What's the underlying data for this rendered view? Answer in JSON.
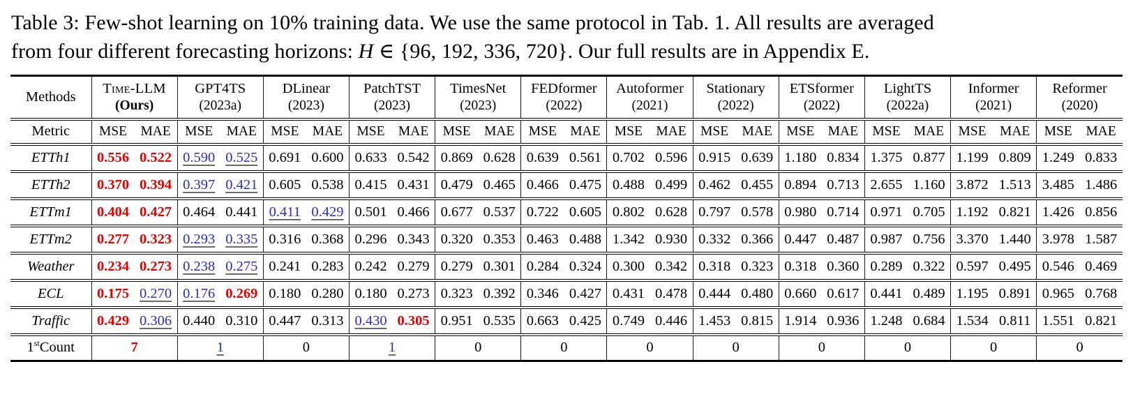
{
  "caption": {
    "line1": "Table 3: Few-shot learning on 10% training data. We use the same protocol in Tab. 1. All results are averaged",
    "line2_pre": "from four different forecasting horizons: ",
    "line2_var": "H",
    "line2_math": " ∈ {96, 192, 336, 720}",
    "line2_post": ". Our full results are in Appendix E."
  },
  "table": {
    "corner_label": "Methods",
    "metric_label": "Metric",
    "metrics": [
      "MSE",
      "MAE"
    ],
    "colors": {
      "best": "#e60000",
      "second": "#2b2bd0",
      "underline": "#6b6b6b"
    },
    "methods": [
      {
        "name": "Time-LLM",
        "year": "(Ours)",
        "smallcaps": true,
        "bold_year": true
      },
      {
        "name": "GPT4TS",
        "year": "(2023a)"
      },
      {
        "name": "DLinear",
        "year": "(2023)"
      },
      {
        "name": "PatchTST",
        "year": "(2023)"
      },
      {
        "name": "TimesNet",
        "year": "(2023)"
      },
      {
        "name": "FEDformer",
        "year": "(2022)"
      },
      {
        "name": "Autoformer",
        "year": "(2021)"
      },
      {
        "name": "Stationary",
        "year": "(2022)"
      },
      {
        "name": "ETSformer",
        "year": "(2022)"
      },
      {
        "name": "LightTS",
        "year": "(2022a)"
      },
      {
        "name": "Informer",
        "year": "(2021)"
      },
      {
        "name": "Reformer",
        "year": "(2020)"
      }
    ],
    "rows": [
      {
        "label": "ETTh1",
        "cells": [
          [
            "0.556",
            "b"
          ],
          [
            "0.522",
            "b"
          ],
          [
            "0.590",
            "s"
          ],
          [
            "0.525",
            "s"
          ],
          "0.691",
          "0.600",
          "0.633",
          "0.542",
          "0.869",
          "0.628",
          "0.639",
          "0.561",
          "0.702",
          "0.596",
          "0.915",
          "0.639",
          "1.180",
          "0.834",
          "1.375",
          "0.877",
          "1.199",
          "0.809",
          "1.249",
          "0.833"
        ]
      },
      {
        "label": "ETTh2",
        "cells": [
          [
            "0.370",
            "b"
          ],
          [
            "0.394",
            "b"
          ],
          [
            "0.397",
            "s"
          ],
          [
            "0.421",
            "s"
          ],
          "0.605",
          "0.538",
          "0.415",
          "0.431",
          "0.479",
          "0.465",
          "0.466",
          "0.475",
          "0.488",
          "0.499",
          "0.462",
          "0.455",
          "0.894",
          "0.713",
          "2.655",
          "1.160",
          "3.872",
          "1.513",
          "3.485",
          "1.486"
        ]
      },
      {
        "label": "ETTm1",
        "cells": [
          [
            "0.404",
            "b"
          ],
          [
            "0.427",
            "b"
          ],
          "0.464",
          "0.441",
          [
            "0.411",
            "s"
          ],
          [
            "0.429",
            "s"
          ],
          "0.501",
          "0.466",
          "0.677",
          "0.537",
          "0.722",
          "0.605",
          "0.802",
          "0.628",
          "0.797",
          "0.578",
          "0.980",
          "0.714",
          "0.971",
          "0.705",
          "1.192",
          "0.821",
          "1.426",
          "0.856"
        ]
      },
      {
        "label": "ETTm2",
        "cells": [
          [
            "0.277",
            "b"
          ],
          [
            "0.323",
            "b"
          ],
          [
            "0.293",
            "s"
          ],
          [
            "0.335",
            "s"
          ],
          "0.316",
          "0.368",
          "0.296",
          "0.343",
          "0.320",
          "0.353",
          "0.463",
          "0.488",
          "1.342",
          "0.930",
          "0.332",
          "0.366",
          "0.447",
          "0.487",
          "0.987",
          "0.756",
          "3.370",
          "1.440",
          "3.978",
          "1.587"
        ]
      },
      {
        "label": "Weather",
        "cells": [
          [
            "0.234",
            "b"
          ],
          [
            "0.273",
            "b"
          ],
          [
            "0.238",
            "s"
          ],
          [
            "0.275",
            "s"
          ],
          "0.241",
          "0.283",
          "0.242",
          "0.279",
          "0.279",
          "0.301",
          "0.284",
          "0.324",
          "0.300",
          "0.342",
          "0.318",
          "0.323",
          "0.318",
          "0.360",
          "0.289",
          "0.322",
          "0.597",
          "0.495",
          "0.546",
          "0.469"
        ]
      },
      {
        "label": "ECL",
        "cells": [
          [
            "0.175",
            "b"
          ],
          [
            "0.270",
            "s"
          ],
          [
            "0.176",
            "s"
          ],
          [
            "0.269",
            "b"
          ],
          "0.180",
          "0.280",
          "0.180",
          "0.273",
          "0.323",
          "0.392",
          "0.346",
          "0.427",
          "0.431",
          "0.478",
          "0.444",
          "0.480",
          "0.660",
          "0.617",
          "0.441",
          "0.489",
          "1.195",
          "0.891",
          "0.965",
          "0.768"
        ]
      },
      {
        "label": "Traffic",
        "cells": [
          [
            "0.429",
            "b"
          ],
          [
            "0.306",
            "s"
          ],
          "0.440",
          "0.310",
          "0.447",
          "0.313",
          [
            "0.430",
            "s"
          ],
          [
            "0.305",
            "b"
          ],
          "0.951",
          "0.535",
          "0.663",
          "0.425",
          "0.749",
          "0.446",
          "1.453",
          "0.815",
          "1.914",
          "0.936",
          "1.248",
          "0.684",
          "1.534",
          "0.811",
          "1.551",
          "0.821"
        ]
      }
    ],
    "count_row": {
      "label_prefix": "1",
      "label_sup": "st",
      "label_suffix": "Count",
      "cells": [
        [
          "7",
          "b"
        ],
        [
          "1",
          "s"
        ],
        "0",
        [
          "1",
          "s"
        ],
        "0",
        "0",
        "0",
        "0",
        "0",
        "0",
        "0",
        "0"
      ]
    }
  }
}
